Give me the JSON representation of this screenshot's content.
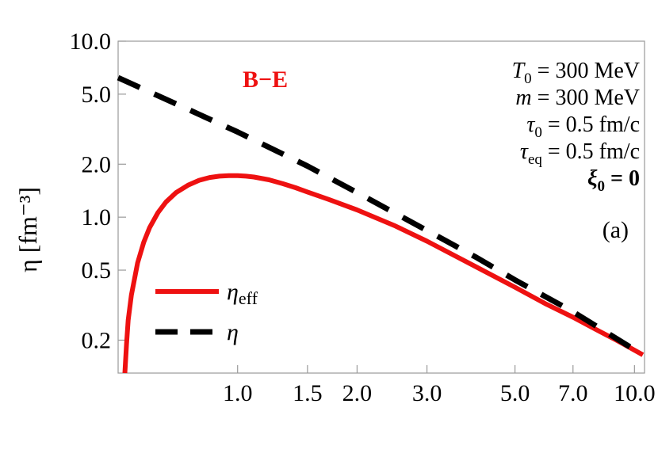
{
  "chart_data": {
    "type": "line",
    "xscale": "log",
    "yscale": "log",
    "xlim": [
      0.5,
      10.6
    ],
    "ylim": [
      0.13,
      10.0
    ],
    "ylabel": "η [fm⁻³]",
    "xticks": [
      {
        "value": 1.0,
        "label": "1.0"
      },
      {
        "value": 1.5,
        "label": "1.5"
      },
      {
        "value": 2.0,
        "label": "2.0"
      },
      {
        "value": 3.0,
        "label": "3.0"
      },
      {
        "value": 5.0,
        "label": "5.0"
      },
      {
        "value": 7.0,
        "label": "7.0"
      },
      {
        "value": 10.0,
        "label": "10.0"
      }
    ],
    "yticks": [
      {
        "value": 10.0,
        "label": "10.0"
      },
      {
        "value": 5.0,
        "label": "5.0"
      },
      {
        "value": 2.0,
        "label": "2.0"
      },
      {
        "value": 1.0,
        "label": "1.0"
      },
      {
        "value": 0.5,
        "label": "0.5"
      },
      {
        "value": 0.2,
        "label": "0.2"
      }
    ],
    "annotation": {
      "text": "B−E",
      "color": "#ee1111"
    },
    "panel_label": "(a)",
    "params": [
      {
        "sym": "T",
        "sub": "0",
        "rest": " = 300 MeV",
        "bold": false
      },
      {
        "sym": "m",
        "sub": "",
        "rest": " = 300 MeV",
        "bold": false
      },
      {
        "sym": "τ",
        "sub": "0",
        "rest": " = 0.5 fm/c",
        "bold": false
      },
      {
        "sym": "τ",
        "sub": "eq",
        "rest": " = 0.5 fm/c",
        "bold": false
      },
      {
        "sym": "ξ",
        "sub": "0",
        "rest": " = 0",
        "bold": true
      }
    ],
    "legend_position": "bottom-left",
    "series": [
      {
        "name": "η_eff",
        "color": "#ee1111",
        "dash": "solid",
        "x": [
          0.52,
          0.525,
          0.53,
          0.54,
          0.56,
          0.58,
          0.6,
          0.63,
          0.66,
          0.7,
          0.75,
          0.8,
          0.85,
          0.9,
          0.95,
          1.0,
          1.05,
          1.1,
          1.2,
          1.3,
          1.4,
          1.5,
          1.7,
          2.0,
          2.5,
          3.0,
          4.0,
          5.0,
          6.0,
          7.0,
          8.0,
          9.0,
          10.5
        ],
        "y": [
          0.13,
          0.19,
          0.26,
          0.36,
          0.55,
          0.72,
          0.87,
          1.06,
          1.22,
          1.38,
          1.52,
          1.62,
          1.68,
          1.71,
          1.72,
          1.72,
          1.71,
          1.69,
          1.63,
          1.55,
          1.47,
          1.39,
          1.26,
          1.1,
          0.89,
          0.73,
          0.52,
          0.4,
          0.32,
          0.27,
          0.23,
          0.2,
          0.165
        ]
      },
      {
        "name": "η",
        "color": "#000000",
        "dash": "dashed",
        "x": [
          0.5,
          0.7,
          1.0,
          1.5,
          2.0,
          3.0,
          4.0,
          5.0,
          7.0,
          10.5
        ],
        "y": [
          6.2,
          4.4,
          3.05,
          1.95,
          1.38,
          0.84,
          0.59,
          0.44,
          0.29,
          0.165
        ]
      }
    ]
  }
}
